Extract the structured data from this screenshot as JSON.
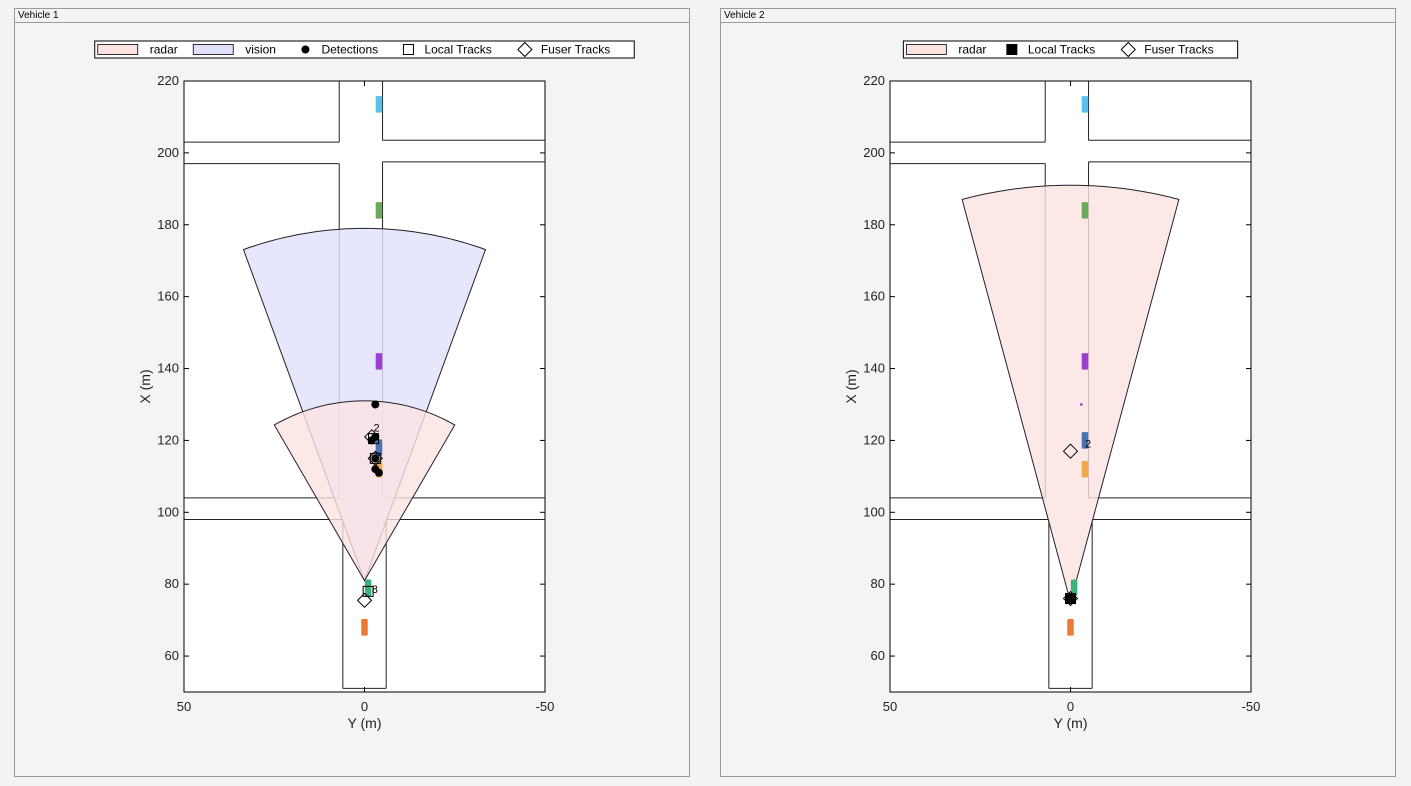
{
  "panels": [
    {
      "title": "Vehicle 1"
    },
    {
      "title": "Vehicle 2"
    }
  ],
  "chart_data": [
    {
      "type": "scatter",
      "title": "Vehicle 1",
      "xlabel": "Y (m)",
      "ylabel": "X (m)",
      "xlim": [
        50,
        -50
      ],
      "ylim": [
        50,
        220
      ],
      "x_reversed": true,
      "xticks": [
        50,
        0,
        -50
      ],
      "yticks": [
        60,
        80,
        100,
        120,
        140,
        160,
        180,
        200,
        220
      ],
      "grid": false,
      "legend_position": "top",
      "legend": [
        {
          "label": "radar",
          "kind": "patch",
          "color": "#fde2e2"
        },
        {
          "label": "vision",
          "kind": "patch",
          "color": "#e0e0fb"
        },
        {
          "label": "Detections",
          "kind": "dot"
        },
        {
          "label": "Local Tracks",
          "kind": "square-open"
        },
        {
          "label": "Fuser Tracks",
          "kind": "diamond"
        }
      ],
      "coverage": [
        {
          "sensor": "vision",
          "origin": [
            81,
            0
          ],
          "range": 98,
          "half_fov_deg": 20,
          "color": "#e0e0fb"
        },
        {
          "sensor": "radar",
          "origin": [
            81,
            0
          ],
          "range": 50,
          "half_fov_deg": 30,
          "color": "#fde2e2"
        }
      ],
      "vehicles": [
        {
          "x": 213.5,
          "y": -4,
          "color": "#5bc1e8"
        },
        {
          "x": 184,
          "y": -4,
          "color": "#6aaa5a"
        },
        {
          "x": 142,
          "y": -4,
          "color": "#9c3fd0"
        },
        {
          "x": 118,
          "y": -4,
          "color": "#4873b5"
        },
        {
          "x": 112,
          "y": -4,
          "color": "#f0a84a"
        },
        {
          "x": 79,
          "y": -1,
          "color": "#3ab27a"
        },
        {
          "x": 68,
          "y": 0,
          "color": "#ec7a34"
        }
      ],
      "detections": [
        {
          "x": 130,
          "y": -3
        },
        {
          "x": 121,
          "y": -3
        },
        {
          "x": 120,
          "y": -2
        },
        {
          "x": 115,
          "y": -3
        },
        {
          "x": 112,
          "y": -3
        },
        {
          "x": 111,
          "y": -4
        }
      ],
      "local_tracks": [
        {
          "x": 120.5,
          "y": -2.5
        },
        {
          "x": 115,
          "y": -3
        },
        {
          "x": 78,
          "y": -1
        }
      ],
      "fuser_tracks": [
        {
          "x": 121,
          "y": -2
        },
        {
          "x": 115,
          "y": -3
        },
        {
          "x": 75.5,
          "y": 0
        }
      ],
      "track_labels": [
        {
          "text": "2",
          "x": 122.5,
          "y": -2.5
        },
        {
          "text": "8",
          "x": 77.5,
          "y": -2
        }
      ]
    },
    {
      "type": "scatter",
      "title": "Vehicle 2",
      "xlabel": "Y (m)",
      "ylabel": "X (m)",
      "xlim": [
        50,
        -50
      ],
      "ylim": [
        50,
        220
      ],
      "x_reversed": true,
      "xticks": [
        50,
        0,
        -50
      ],
      "yticks": [
        60,
        80,
        100,
        120,
        140,
        160,
        180,
        200,
        220
      ],
      "grid": false,
      "legend_position": "top",
      "legend": [
        {
          "label": "radar",
          "kind": "patch",
          "color": "#fde2e2"
        },
        {
          "label": "Local Tracks",
          "kind": "square-filled"
        },
        {
          "label": "Fuser Tracks",
          "kind": "diamond"
        }
      ],
      "coverage": [
        {
          "sensor": "radar",
          "origin": [
            75,
            0
          ],
          "range": 116,
          "half_fov_deg": 15,
          "color": "#fde2e2"
        }
      ],
      "vehicles": [
        {
          "x": 213.5,
          "y": -4,
          "color": "#5bc1e8"
        },
        {
          "x": 184,
          "y": -4,
          "color": "#6aaa5a"
        },
        {
          "x": 142,
          "y": -4,
          "color": "#9c3fd0"
        },
        {
          "x": 120,
          "y": -4,
          "color": "#4873b5"
        },
        {
          "x": 112,
          "y": -4,
          "color": "#f0a84a"
        },
        {
          "x": 79,
          "y": -1,
          "color": "#3ab27a"
        },
        {
          "x": 68,
          "y": 0,
          "color": "#ec7a34"
        }
      ],
      "detections": [
        {
          "x": 130,
          "y": -3,
          "color": "#9c3fd0"
        }
      ],
      "local_tracks": [
        {
          "x": 76,
          "y": 0
        }
      ],
      "fuser_tracks": [
        {
          "x": 117,
          "y": 0
        },
        {
          "x": 76,
          "y": 0
        }
      ],
      "track_labels": [
        {
          "text": "2",
          "x": 118,
          "y": -4
        }
      ]
    }
  ]
}
